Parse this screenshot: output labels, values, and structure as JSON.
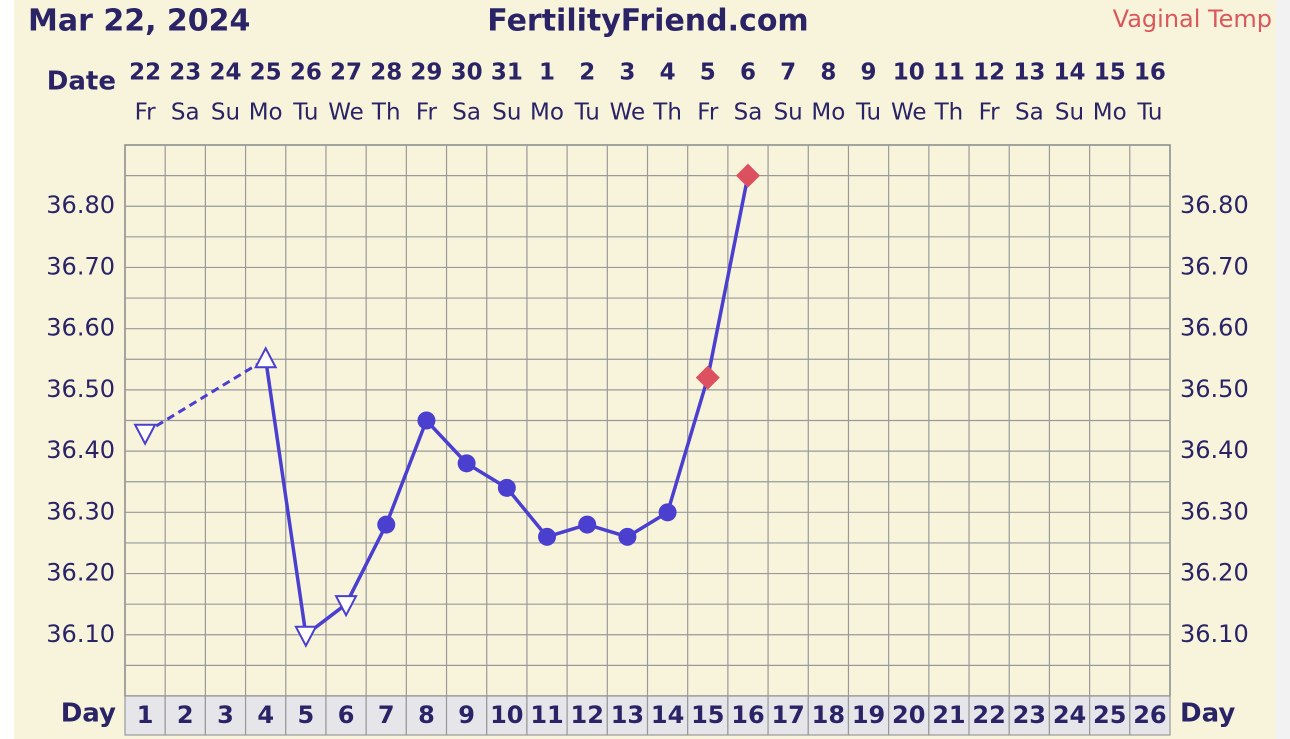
{
  "chart_data": {
    "type": "line",
    "header_date": "Mar 22, 2024",
    "site": "FertilityFriend.com",
    "date_label": "Date",
    "day_label": "Day",
    "dates": [
      "22",
      "23",
      "24",
      "25",
      "26",
      "27",
      "28",
      "29",
      "30",
      "31",
      "1",
      "2",
      "3",
      "4",
      "5",
      "6",
      "7",
      "8",
      "9",
      "10",
      "11",
      "12",
      "13",
      "14",
      "15",
      "16"
    ],
    "weekdays": [
      "Fr",
      "Sa",
      "Su",
      "Mo",
      "Tu",
      "We",
      "Th",
      "Fr",
      "Sa",
      "Su",
      "Mo",
      "Tu",
      "We",
      "Th",
      "Fr",
      "Sa",
      "Su",
      "Mo",
      "Tu",
      "We",
      "Th",
      "Fr",
      "Sa",
      "Su",
      "Mo",
      "Tu"
    ],
    "categories": [
      "1",
      "2",
      "3",
      "4",
      "5",
      "6",
      "7",
      "8",
      "9",
      "10",
      "11",
      "12",
      "13",
      "14",
      "15",
      "16",
      "17",
      "18",
      "19",
      "20",
      "21",
      "22",
      "23",
      "24",
      "25",
      "26"
    ],
    "series": [
      {
        "name": "Vaginal Temp",
        "color": "#4a3fcf",
        "label_color": "#d9585c",
        "highlight_color": "#dd5060",
        "values": [
          36.43,
          null,
          null,
          36.55,
          36.1,
          36.15,
          36.28,
          36.45,
          36.38,
          36.34,
          36.26,
          36.28,
          36.26,
          36.3,
          36.52,
          36.85,
          null,
          null,
          null,
          null,
          null,
          null,
          null,
          null,
          null,
          null
        ],
        "markers": [
          "triangle-down",
          null,
          null,
          "triangle-up",
          "triangle-down",
          "triangle-down",
          "dot",
          "dot",
          "dot",
          "dot",
          "dot",
          "dot",
          "dot",
          "dot",
          "diamond",
          "diamond",
          null,
          null,
          null,
          null,
          null,
          null,
          null,
          null,
          null,
          null
        ]
      }
    ],
    "ylim": [
      36.0,
      36.9
    ],
    "yticks": [
      {
        "value": 36.1,
        "label": "36.10"
      },
      {
        "value": 36.2,
        "label": "36.20"
      },
      {
        "value": 36.3,
        "label": "36.30"
      },
      {
        "value": 36.4,
        "label": "36.40"
      },
      {
        "value": 36.5,
        "label": "36.50"
      },
      {
        "value": 36.6,
        "label": "36.60"
      },
      {
        "value": 36.7,
        "label": "36.70"
      },
      {
        "value": 36.8,
        "label": "36.80"
      }
    ],
    "minor_yticks": [
      36.05,
      36.15,
      36.25,
      36.35,
      36.45,
      36.55,
      36.65,
      36.75,
      36.85
    ],
    "grid": true
  }
}
